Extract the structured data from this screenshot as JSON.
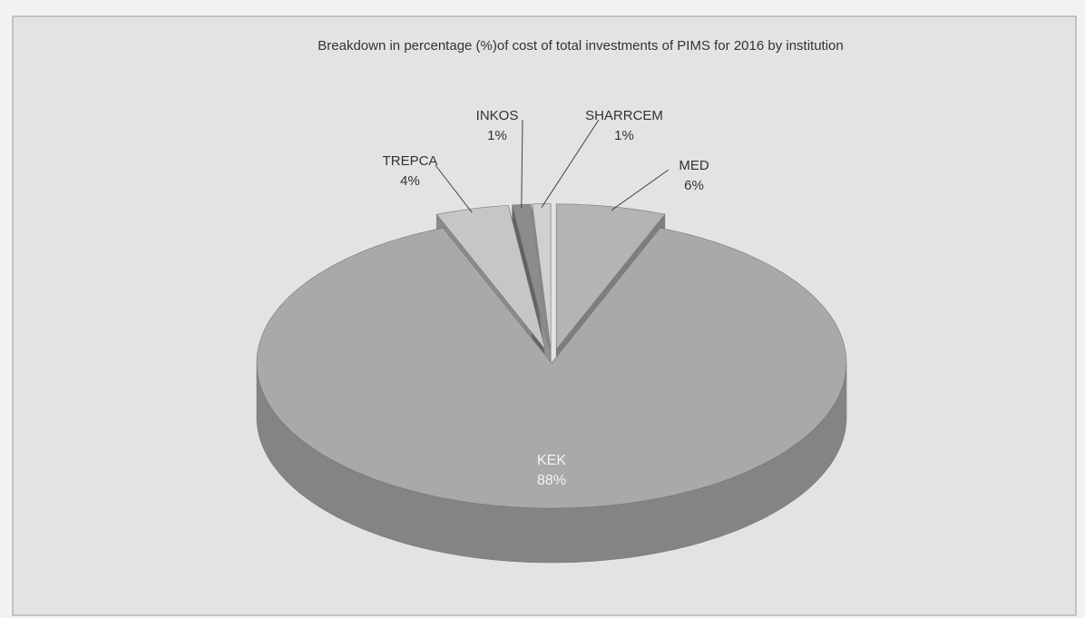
{
  "chart_data": {
    "type": "pie",
    "title": "Breakdown in percentage (%)of cost of total investments of PIMS for 2016 by institution",
    "categories": [
      "MED",
      "KEK",
      "TREPCA",
      "INKOS",
      "SHARRCEM"
    ],
    "values": [
      6,
      88,
      4,
      1,
      1
    ],
    "value_labels": [
      "6%",
      "88%",
      "4%",
      "1%",
      "1%"
    ],
    "colors": [
      "#b4b4b4",
      "#a9a9a9",
      "#c6c6c6",
      "#8c8c8c",
      "#d0d0d0"
    ]
  }
}
